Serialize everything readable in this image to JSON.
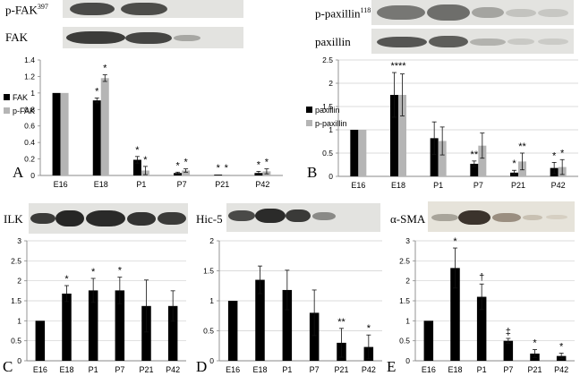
{
  "colors": {
    "dark": "#000000",
    "light": "#b5b5b5",
    "axis": "#888888",
    "grid": "#cfcfcf"
  },
  "blots": {
    "pfak": "p-FAK",
    "pfak_sup": "397",
    "fak": "FAK",
    "ppax": "p-paxillin",
    "ppax_sup": "118",
    "pax": "paxillin",
    "ilk": "ILK",
    "hic5": "Hic-5",
    "sma": "α-SMA"
  },
  "chart_data": [
    {
      "panel": "A",
      "type": "bar",
      "categories": [
        "E16",
        "E18",
        "P1",
        "P7",
        "P21",
        "P42"
      ],
      "series": [
        {
          "name": "FAK",
          "values": [
            1.0,
            0.91,
            0.19,
            0.03,
            0.01,
            0.03
          ],
          "err": [
            0.0,
            0.03,
            0.04,
            0.01,
            0.0,
            0.02
          ]
        },
        {
          "name": "p-FAK",
          "values": [
            1.0,
            1.18,
            0.06,
            0.06,
            0.01,
            0.05
          ],
          "err": [
            0.0,
            0.04,
            0.05,
            0.02,
            0.0,
            0.03
          ]
        }
      ],
      "ylim": [
        0,
        1.4
      ],
      "yticks": [
        "0",
        "0.2",
        "0.4",
        "0.6",
        "0.8",
        "1",
        "1.2",
        "1.4"
      ],
      "annotations": [
        {
          "x": 1,
          "series": 0,
          "text": "*"
        },
        {
          "x": 1,
          "series": 1,
          "text": "*"
        },
        {
          "x": 2,
          "series": 0,
          "text": "*"
        },
        {
          "x": 2,
          "series": 1,
          "text": "*"
        },
        {
          "x": 3,
          "series": 0,
          "text": "*"
        },
        {
          "x": 3,
          "series": 1,
          "text": "*"
        },
        {
          "x": 4,
          "series": 0,
          "text": "*"
        },
        {
          "x": 4,
          "series": 1,
          "text": "*"
        },
        {
          "x": 5,
          "series": 0,
          "text": "*"
        },
        {
          "x": 5,
          "series": 1,
          "text": "*"
        }
      ],
      "grid": false
    },
    {
      "panel": "B",
      "type": "bar",
      "categories": [
        "E16",
        "E18",
        "P1",
        "P7",
        "P21",
        "P42"
      ],
      "series": [
        {
          "name": "paxillin",
          "values": [
            1.0,
            1.75,
            0.82,
            0.27,
            0.08,
            0.18
          ],
          "err": [
            0.0,
            0.48,
            0.35,
            0.06,
            0.05,
            0.12
          ]
        },
        {
          "name": "p-paxillin",
          "values": [
            1.0,
            1.75,
            0.76,
            0.66,
            0.32,
            0.2
          ],
          "err": [
            0.0,
            0.45,
            0.3,
            0.27,
            0.18,
            0.16
          ]
        }
      ],
      "ylim": [
        0,
        2.5
      ],
      "yticks": [
        "0",
        "0.5",
        "1",
        "1.5",
        "2",
        "2.5"
      ],
      "annotations": [
        {
          "x": 1,
          "series": -1,
          "text": "****"
        },
        {
          "x": 3,
          "series": 0,
          "text": "**"
        },
        {
          "x": 4,
          "series": 0,
          "text": "*"
        },
        {
          "x": 4,
          "series": 1,
          "text": "**"
        },
        {
          "x": 5,
          "series": 0,
          "text": "*"
        },
        {
          "x": 5,
          "series": 1,
          "text": "*"
        }
      ],
      "grid": true
    },
    {
      "panel": "C",
      "type": "bar",
      "categories": [
        "E16",
        "E18",
        "P1",
        "P7",
        "P21",
        "P42"
      ],
      "series": [
        {
          "values": [
            1.0,
            1.68,
            1.76,
            1.76,
            1.37,
            1.37
          ],
          "err": [
            0.0,
            0.2,
            0.3,
            0.33,
            0.65,
            0.38
          ]
        }
      ],
      "ylim": [
        0,
        3
      ],
      "yticks": [
        "0",
        "0.5",
        "1",
        "1.5",
        "2",
        "2.5",
        "3"
      ],
      "annotations": [
        {
          "x": 1,
          "text": "*"
        },
        {
          "x": 2,
          "text": "*"
        },
        {
          "x": 3,
          "text": "*"
        }
      ],
      "grid": true
    },
    {
      "panel": "D",
      "type": "bar",
      "categories": [
        "E16",
        "E18",
        "P1",
        "P7",
        "P21",
        "P42"
      ],
      "series": [
        {
          "values": [
            1.0,
            1.35,
            1.18,
            0.8,
            0.3,
            0.23
          ],
          "err": [
            0.0,
            0.23,
            0.33,
            0.38,
            0.24,
            0.2
          ]
        }
      ],
      "ylim": [
        0,
        2
      ],
      "yticks": [
        "0",
        "0.5",
        "1",
        "1.5",
        "2"
      ],
      "annotations": [
        {
          "x": 4,
          "text": "**"
        },
        {
          "x": 5,
          "text": "*"
        }
      ],
      "grid": true
    },
    {
      "panel": "E",
      "type": "bar",
      "categories": [
        "E16",
        "E18",
        "P1",
        "P7",
        "P21",
        "P42"
      ],
      "series": [
        {
          "values": [
            1.0,
            2.32,
            1.6,
            0.5,
            0.18,
            0.12
          ],
          "err": [
            0.0,
            0.5,
            0.32,
            0.06,
            0.1,
            0.07
          ]
        }
      ],
      "ylim": [
        0,
        3
      ],
      "yticks": [
        "0",
        "0.5",
        "1",
        "1.5",
        "2",
        "2.5",
        "3"
      ],
      "annotations": [
        {
          "x": 1,
          "text": "*"
        },
        {
          "x": 2,
          "text": "†"
        },
        {
          "x": 3,
          "text": "‡"
        },
        {
          "x": 4,
          "text": "*"
        },
        {
          "x": 5,
          "text": "*"
        }
      ],
      "grid": true
    }
  ]
}
